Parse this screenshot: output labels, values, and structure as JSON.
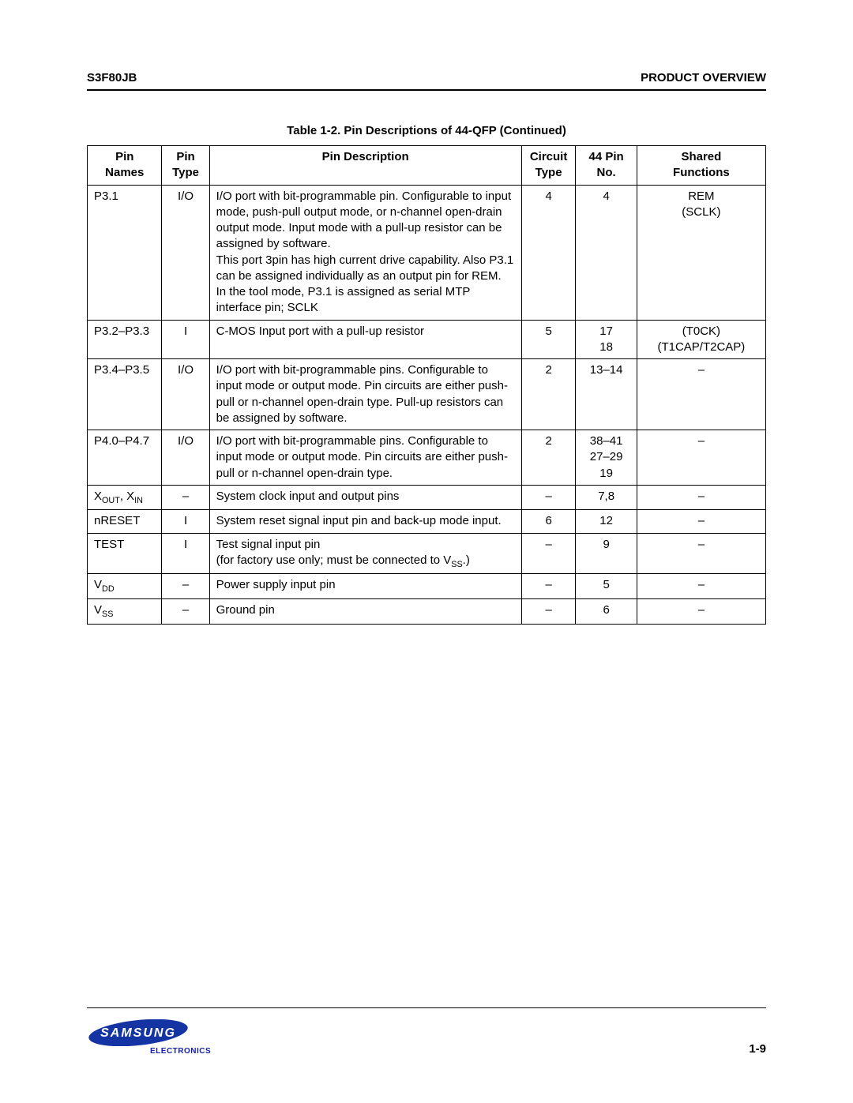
{
  "header": {
    "left": "S3F80JB",
    "right": "PRODUCT OVERVIEW"
  },
  "table": {
    "caption": "Table 1-2. Pin Descriptions of 44-QFP (Continued)",
    "columns": [
      "Pin\nNames",
      "Pin\nType",
      "Pin Description",
      "Circuit\nType",
      "44 Pin\nNo.",
      "Shared\nFunctions"
    ],
    "rows": [
      {
        "name_html": "P3.1",
        "ptype": "I/O",
        "desc_html": "I/O port with bit-programmable pin. Configurable to input mode, push-pull output mode, or n-channel open-drain output mode. Input mode with a pull-up resistor can be assigned by software.<br>This port 3pin has high current drive capability. Also P3.1 can be assigned individually as an output pin for REM.<br>In the tool mode, P3.1 is assigned as serial MTP interface pin; SCLK",
        "ctype": "4",
        "pinno": "4",
        "shared": "REM<br>(SCLK)"
      },
      {
        "name_html": "P3.2–P3.3",
        "ptype": "I",
        "desc_html": "C-MOS Input port with a pull-up resistor",
        "ctype": "5",
        "pinno": "17<br>18",
        "shared": "(T0CK)<br>(T1CAP/T2CAP)"
      },
      {
        "name_html": "P3.4–P3.5",
        "ptype": "I/O",
        "desc_html": "I/O port with bit-programmable pins. Configurable to input mode or output mode. Pin circuits are either push-pull or n-channel open-drain type. Pull-up resistors can be assigned by software.",
        "ctype": "2",
        "pinno": "13–14",
        "shared": "–"
      },
      {
        "name_html": "P4.0–P4.7",
        "ptype": "I/O",
        "desc_html": "I/O port with bit-programmable pins. Configurable to input mode or output mode. Pin circuits are either push-pull or n-channel open-drain type.",
        "ctype": "2",
        "pinno": "38–41<br>27–29<br>19",
        "shared": "–"
      },
      {
        "name_html": "X<span class=\"sub\">OUT</span>, X<span class=\"sub\">IN</span>",
        "ptype": "–",
        "desc_html": "System clock input and output pins",
        "ctype": "–",
        "pinno": "7,8",
        "shared": "–"
      },
      {
        "name_html": "nRESET",
        "ptype": "I",
        "desc_html": "System reset signal input pin and back-up mode input.",
        "ctype": "6",
        "pinno": "12",
        "shared": "–"
      },
      {
        "name_html": "TEST",
        "ptype": "I",
        "desc_html": "Test signal input pin<br>(for factory use only; must be connected to V<span class=\"sub\">SS</span>.)",
        "ctype": "–",
        "pinno": "9",
        "shared": "–"
      },
      {
        "name_html": "V<span class=\"sub\">DD</span>",
        "ptype": "–",
        "desc_html": "Power supply input pin",
        "ctype": "–",
        "pinno": "5",
        "shared": "–"
      },
      {
        "name_html": "V<span class=\"sub\">SS</span>",
        "ptype": "–",
        "desc_html": "Ground pin",
        "ctype": "–",
        "pinno": "6",
        "shared": "–"
      }
    ]
  },
  "footer": {
    "logo_text": "SAMSUNG",
    "electronics": "ELECTRONICS",
    "page": "1-9",
    "logo_oval_fill": "#1434a4",
    "logo_text_fill": "#ffffff"
  }
}
